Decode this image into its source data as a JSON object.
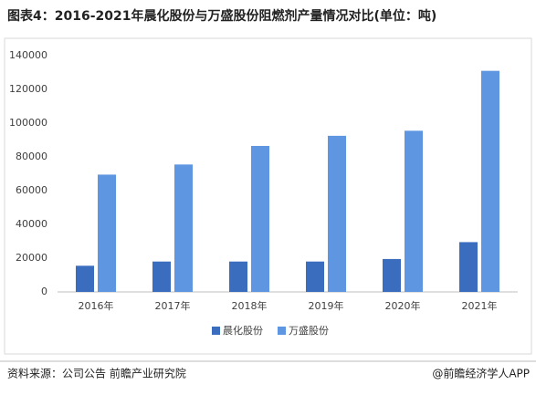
{
  "chart_data": {
    "type": "bar",
    "title": "图表4：2016-2021年晨化股份与万盛股份阻燃剂产量情况对比(单位：吨)",
    "categories": [
      "2016年",
      "2017年",
      "2018年",
      "2019年",
      "2020年",
      "2021年"
    ],
    "series": [
      {
        "name": "晨化股份",
        "color": "#3b6dbf",
        "values": [
          15500,
          18000,
          18000,
          18000,
          19500,
          29500
        ]
      },
      {
        "name": "万盛股份",
        "color": "#5e96e2",
        "values": [
          69500,
          75500,
          86500,
          92500,
          95500,
          131000
        ]
      }
    ],
    "ylim": [
      0,
      140000
    ],
    "yticks": [
      0,
      20000,
      40000,
      60000,
      80000,
      100000,
      120000,
      140000
    ],
    "grid": false,
    "legend": "bottom"
  },
  "source": "资料来源：公司公告 前瞻产业研究院",
  "credit": "@前瞻经济学人APP"
}
